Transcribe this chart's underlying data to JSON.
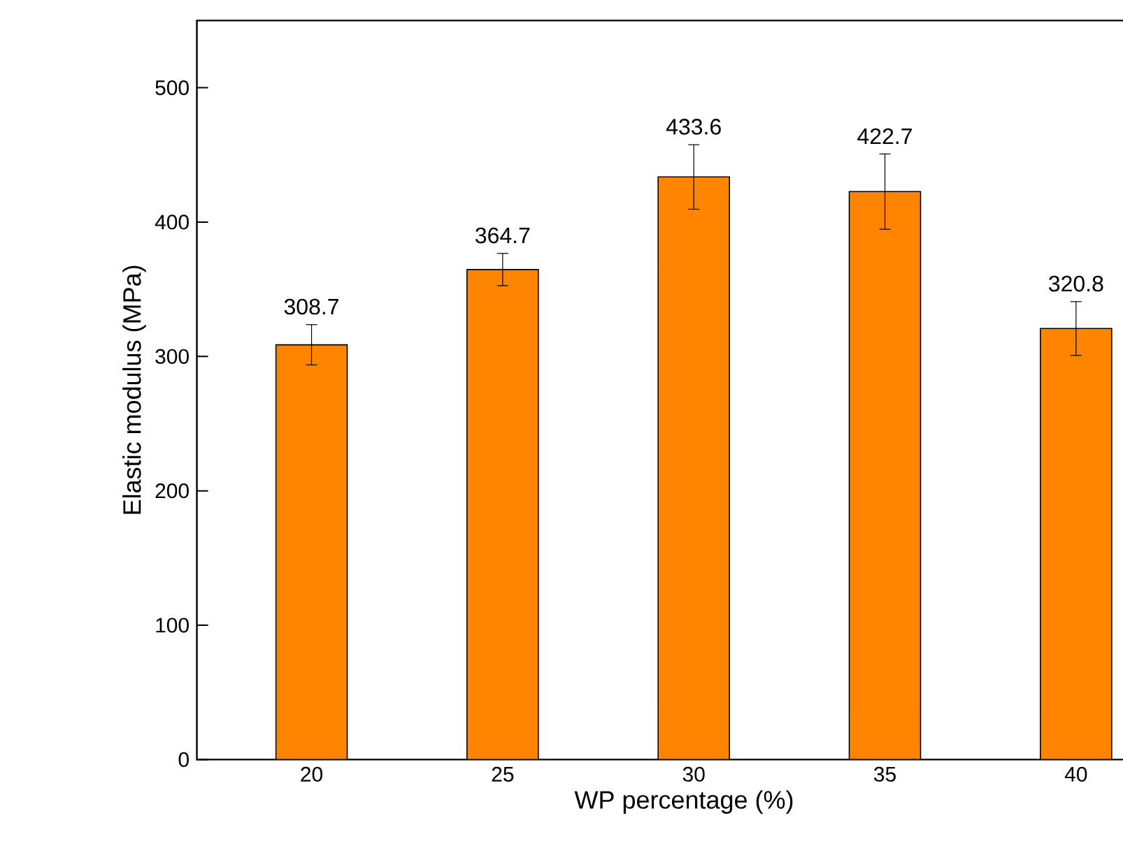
{
  "chart_data": {
    "type": "bar",
    "xlabel": "WP percentage (%)",
    "ylabel": "Elastic modulus (MPa)",
    "categories": [
      "20",
      "25",
      "30",
      "35",
      "40"
    ],
    "values": [
      308.7,
      364.7,
      433.6,
      422.7,
      320.8
    ],
    "errors": [
      15,
      12,
      24,
      28,
      20
    ],
    "color": "#ff8400",
    "data_labels": true,
    "ylim": [
      0,
      550
    ],
    "yticks": [
      0,
      100,
      200,
      300,
      400,
      500
    ],
    "grid": false
  }
}
